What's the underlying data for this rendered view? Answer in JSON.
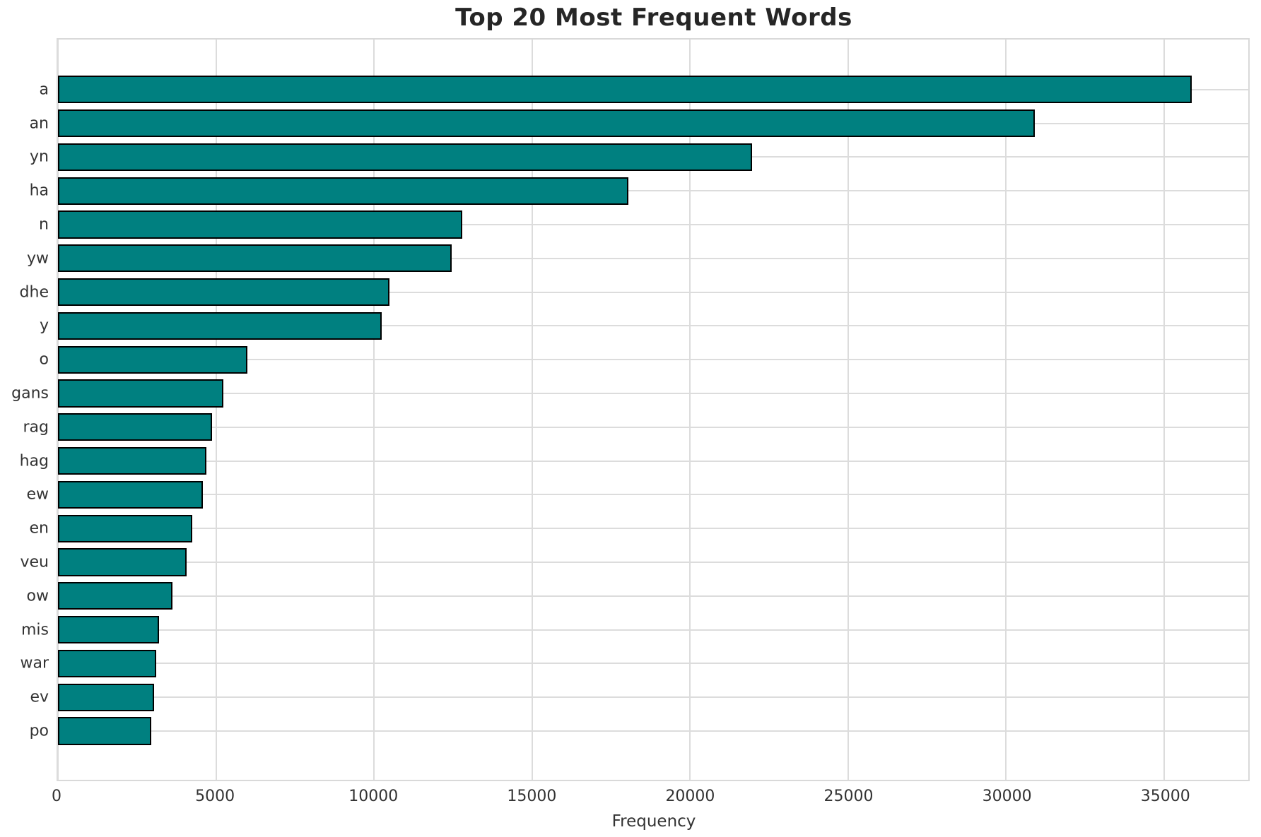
{
  "chart_data": {
    "type": "bar",
    "orientation": "horizontal",
    "title": "Top 20 Most Frequent Words",
    "xlabel": "Frequency",
    "ylabel": "",
    "categories": [
      "a",
      "an",
      "yn",
      "ha",
      "n",
      "yw",
      "dhe",
      "y",
      "o",
      "gans",
      "rag",
      "hag",
      "ew",
      "en",
      "veu",
      "ow",
      "mis",
      "war",
      "ev",
      "po"
    ],
    "values": [
      35860,
      30900,
      21950,
      18050,
      12800,
      12450,
      10480,
      10240,
      6000,
      5240,
      4870,
      4690,
      4590,
      4240,
      4060,
      3620,
      3200,
      3110,
      3050,
      2950
    ],
    "xlim": [
      0,
      37660
    ],
    "xticks": [
      0,
      5000,
      10000,
      15000,
      20000,
      25000,
      30000,
      35000
    ],
    "xtick_labels": [
      "0",
      "5000",
      "10000",
      "15000",
      "20000",
      "25000",
      "30000",
      "35000"
    ],
    "grid": true,
    "legend": false,
    "colors": {
      "bar_fill": "#008080",
      "bar_edge": "#000000",
      "gridline": "#dcdcdc",
      "axes_border": "#d9d9d9",
      "title_text": "#262626",
      "tick_text": "#333333",
      "background": "#ffffff"
    }
  }
}
